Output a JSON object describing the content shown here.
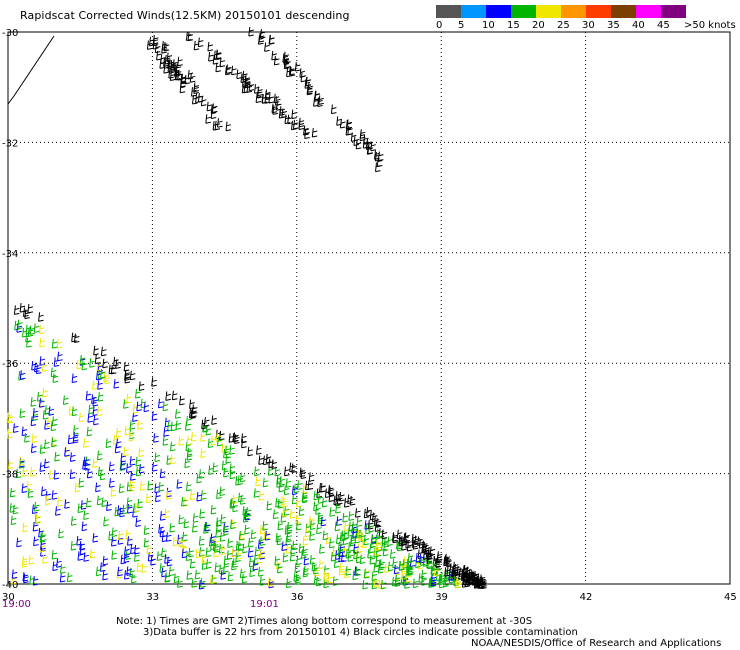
{
  "title": "Rapidscat Corrected Winds(12.5KM) 20150101 descending",
  "legend": {
    "colors": [
      "#555555",
      "#0096ff",
      "#0000ff",
      "#00b400",
      "#f0e600",
      "#ff9600",
      "#ff3c00",
      "#7b3f00",
      "#ff00ff",
      "#800080"
    ],
    "labels": [
      "0",
      "5",
      "10",
      "15",
      "20",
      "25",
      "30",
      "35",
      "40",
      "45",
      ">50 knots"
    ]
  },
  "map": {
    "lat_labels": [
      "-30",
      "-32",
      "-34",
      "-36",
      "-38",
      "-40"
    ],
    "lon_labels": [
      "30",
      "33",
      "36",
      "39",
      "42",
      "45"
    ],
    "lon_range": [
      30,
      45
    ],
    "lat_range": [
      -30,
      -40
    ]
  },
  "times": [
    "19:00",
    "19:01"
  ],
  "notes": [
    "Note: 1) Times are GMT 2)Times along bottom correspond to measurement at -30S",
    "3)Data buffer is 22 hrs from 20150101 4) Black circles indicate possible contamination",
    "NOAA/NESDIS/Office of Research and Applications"
  ]
}
